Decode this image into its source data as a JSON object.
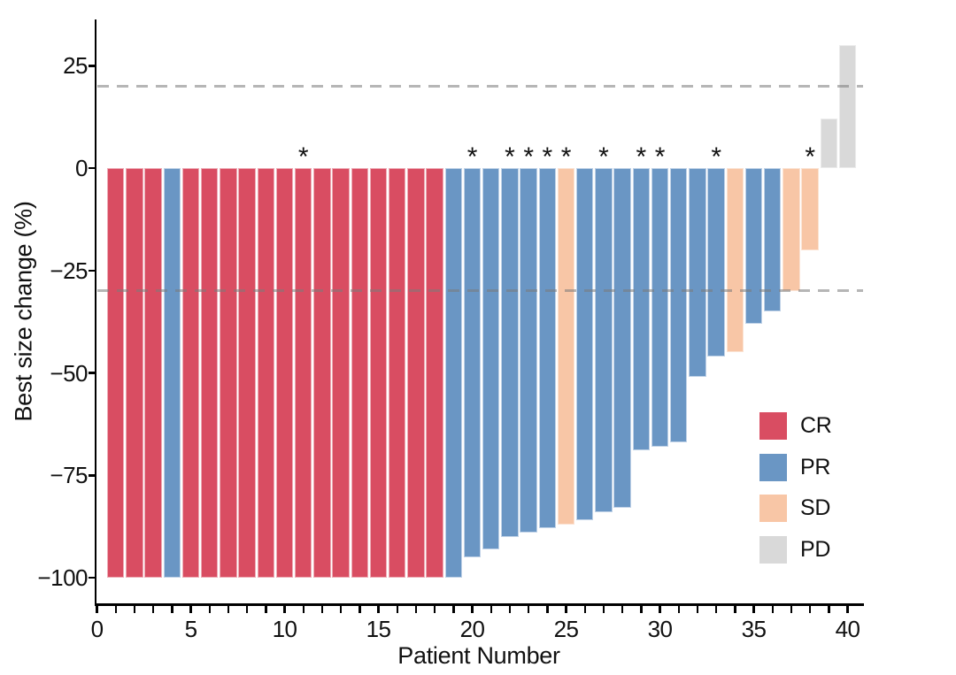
{
  "chart_data": {
    "type": "bar",
    "variant": "waterfall",
    "title": "",
    "xlabel": "Patient Number",
    "ylabel": "Best size change (%)",
    "xlim": [
      0,
      41
    ],
    "ylim": [
      -107,
      36
    ],
    "x_major_ticks": [
      0,
      5,
      10,
      15,
      20,
      25,
      30,
      35,
      40
    ],
    "x_minor_tick_step": 1,
    "y_ticks": [
      25,
      0,
      -25,
      -50,
      -75,
      -100
    ],
    "grid": false,
    "reference_lines": {
      "values": [
        20,
        -30
      ],
      "style": "dashed",
      "color": "#7A7A7A",
      "opacity": 0.55
    },
    "annotation_symbol": "*",
    "annotated_patients": [
      11,
      20,
      22,
      23,
      24,
      25,
      27,
      29,
      30,
      33,
      38
    ],
    "legend": {
      "position": "inside-right",
      "entries": [
        {
          "label": "CR",
          "color": "#D94D62",
          "border": "#EDACB6"
        },
        {
          "label": "PR",
          "color": "#6A96C4",
          "border": "#C0D2E7"
        },
        {
          "label": "SD",
          "color": "#F8C6A6",
          "border": "#FBE3D3"
        },
        {
          "label": "PD",
          "color": "#D9D9D9",
          "border": "#EBEBEB"
        }
      ]
    },
    "patients": [
      {
        "n": 1,
        "value": -100,
        "response": "CR",
        "star": false
      },
      {
        "n": 2,
        "value": -100,
        "response": "CR",
        "star": false
      },
      {
        "n": 3,
        "value": -100,
        "response": "CR",
        "star": false
      },
      {
        "n": 4,
        "value": -100,
        "response": "PR",
        "star": false
      },
      {
        "n": 5,
        "value": -100,
        "response": "CR",
        "star": false
      },
      {
        "n": 6,
        "value": -100,
        "response": "CR",
        "star": false
      },
      {
        "n": 7,
        "value": -100,
        "response": "CR",
        "star": false
      },
      {
        "n": 8,
        "value": -100,
        "response": "CR",
        "star": false
      },
      {
        "n": 9,
        "value": -100,
        "response": "CR",
        "star": false
      },
      {
        "n": 10,
        "value": -100,
        "response": "CR",
        "star": false
      },
      {
        "n": 11,
        "value": -100,
        "response": "CR",
        "star": true
      },
      {
        "n": 12,
        "value": -100,
        "response": "CR",
        "star": false
      },
      {
        "n": 13,
        "value": -100,
        "response": "CR",
        "star": false
      },
      {
        "n": 14,
        "value": -100,
        "response": "CR",
        "star": false
      },
      {
        "n": 15,
        "value": -100,
        "response": "CR",
        "star": false
      },
      {
        "n": 16,
        "value": -100,
        "response": "CR",
        "star": false
      },
      {
        "n": 17,
        "value": -100,
        "response": "CR",
        "star": false
      },
      {
        "n": 18,
        "value": -100,
        "response": "CR",
        "star": false
      },
      {
        "n": 19,
        "value": -100,
        "response": "PR",
        "star": false
      },
      {
        "n": 20,
        "value": -95,
        "response": "PR",
        "star": true
      },
      {
        "n": 21,
        "value": -93,
        "response": "PR",
        "star": false
      },
      {
        "n": 22,
        "value": -90,
        "response": "PR",
        "star": true
      },
      {
        "n": 23,
        "value": -89,
        "response": "PR",
        "star": true
      },
      {
        "n": 24,
        "value": -88,
        "response": "PR",
        "star": true
      },
      {
        "n": 25,
        "value": -87,
        "response": "SD",
        "star": true
      },
      {
        "n": 26,
        "value": -86,
        "response": "PR",
        "star": false
      },
      {
        "n": 27,
        "value": -84,
        "response": "PR",
        "star": true
      },
      {
        "n": 28,
        "value": -83,
        "response": "PR",
        "star": false
      },
      {
        "n": 29,
        "value": -69,
        "response": "PR",
        "star": true
      },
      {
        "n": 30,
        "value": -68,
        "response": "PR",
        "star": true
      },
      {
        "n": 31,
        "value": -67,
        "response": "PR",
        "star": false
      },
      {
        "n": 32,
        "value": -51,
        "response": "PR",
        "star": false
      },
      {
        "n": 33,
        "value": -46,
        "response": "PR",
        "star": true
      },
      {
        "n": 34,
        "value": -45,
        "response": "SD",
        "star": false
      },
      {
        "n": 35,
        "value": -38,
        "response": "PR",
        "star": false
      },
      {
        "n": 36,
        "value": -35,
        "response": "PR",
        "star": false
      },
      {
        "n": 37,
        "value": -30,
        "response": "SD",
        "star": false
      },
      {
        "n": 38,
        "value": -20,
        "response": "SD",
        "star": true
      },
      {
        "n": 39,
        "value": 12,
        "response": "PD",
        "star": false
      },
      {
        "n": 40,
        "value": 30,
        "response": "PD",
        "star": false
      }
    ]
  }
}
